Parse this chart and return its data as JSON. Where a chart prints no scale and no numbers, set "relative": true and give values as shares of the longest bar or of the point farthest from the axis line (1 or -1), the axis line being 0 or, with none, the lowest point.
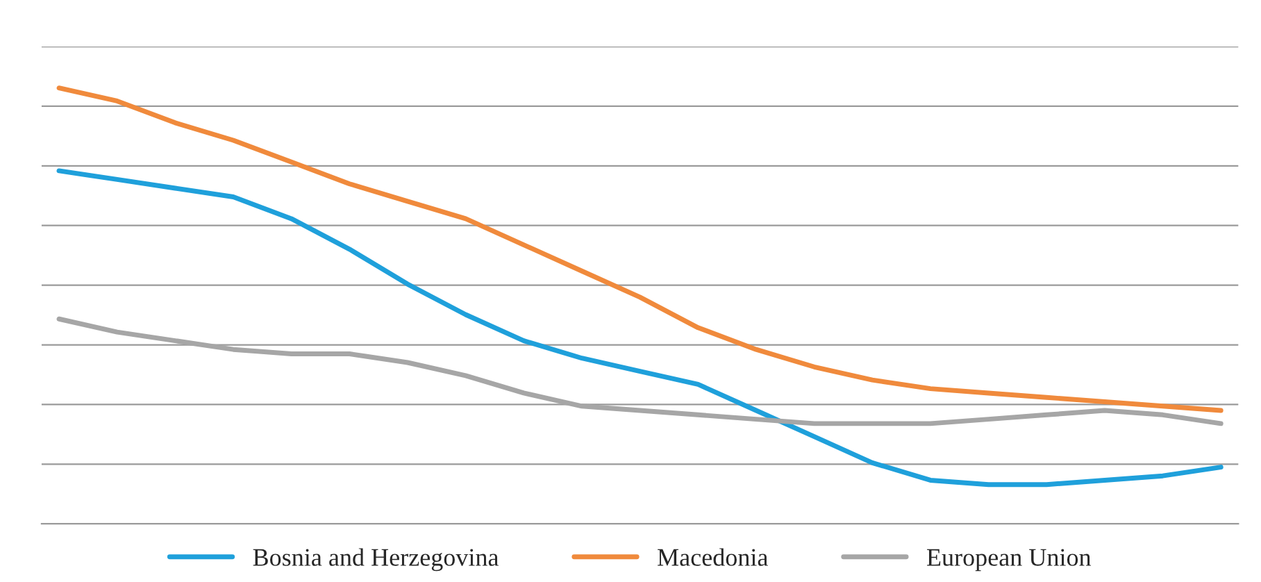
{
  "chart_data": {
    "type": "line",
    "relative": true,
    "grid": "y",
    "legend": "bottom",
    "marker": "none",
    "line_style": "solid",
    "categories": [
      null,
      null,
      null,
      null,
      null,
      null,
      null,
      null,
      null,
      null,
      null,
      null,
      null,
      null,
      null,
      null,
      null,
      null,
      null,
      null,
      null
    ],
    "series": [
      {
        "name": "Bosnia and Herzegovina",
        "color": "#1fa0db",
        "values": [
          0.81,
          0.79,
          0.77,
          0.75,
          0.7,
          0.63,
          0.55,
          0.48,
          0.42,
          0.38,
          0.35,
          0.32,
          0.26,
          0.2,
          0.14,
          0.1,
          0.09,
          0.09,
          0.1,
          0.11,
          0.13
        ]
      },
      {
        "name": "Macedonia",
        "color": "#f08a3c",
        "values": [
          1.0,
          0.97,
          0.92,
          0.88,
          0.83,
          0.78,
          0.74,
          0.7,
          0.64,
          0.58,
          0.52,
          0.45,
          0.4,
          0.36,
          0.33,
          0.31,
          0.3,
          0.29,
          0.28,
          0.27,
          0.26
        ]
      },
      {
        "name": "European Union",
        "color": "#a6a6a6",
        "values": [
          0.47,
          0.44,
          0.42,
          0.4,
          0.39,
          0.39,
          0.37,
          0.34,
          0.3,
          0.27,
          0.26,
          0.25,
          0.24,
          0.23,
          0.23,
          0.23,
          0.24,
          0.25,
          0.26,
          0.25,
          0.23
        ]
      }
    ]
  }
}
